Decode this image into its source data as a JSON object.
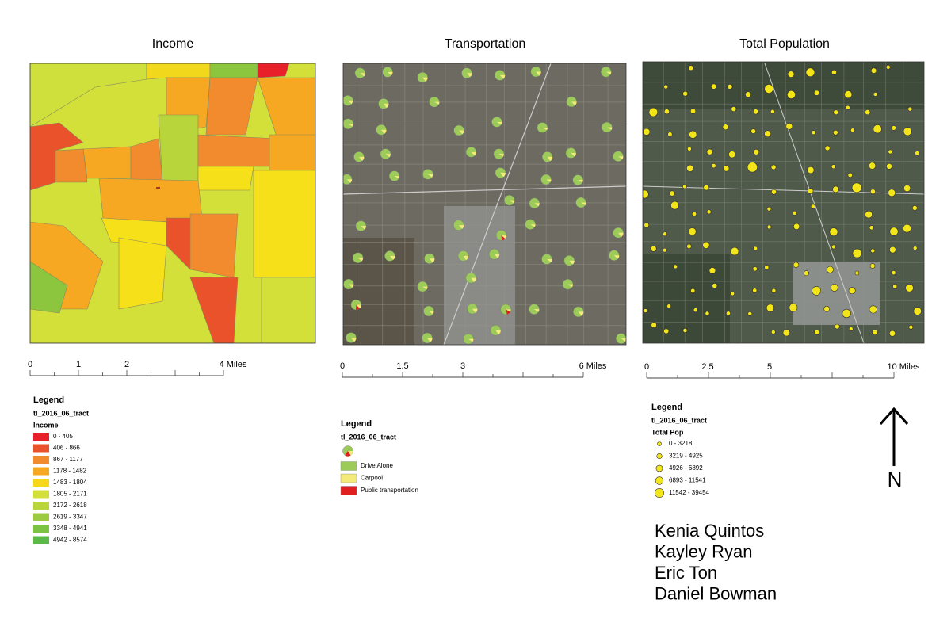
{
  "maps": [
    {
      "title": "Income",
      "scale": [
        "0",
        "1",
        "2",
        "4 Miles"
      ],
      "legend": {
        "title": "Legend",
        "layer": "tl_2016_06_tract",
        "field": "Income",
        "classes": [
          "0 - 405",
          "406 - 866",
          "867 - 1177",
          "1178 - 1482",
          "1483 - 1804",
          "1805 - 2171",
          "2172 - 2618",
          "2619 - 3347",
          "3348 - 4941",
          "4942 - 8574"
        ]
      }
    },
    {
      "title": "Transportation",
      "scale": [
        "0",
        "1.5",
        "3",
        "6 Miles"
      ],
      "legend": {
        "title": "Legend",
        "layer": "tl_2016_06_tract",
        "classes": [
          "Drive Alone",
          "Carpool",
          "Public transportation"
        ]
      }
    },
    {
      "title": "Total Population",
      "scale": [
        "0",
        "2.5",
        "5",
        "10 Miles"
      ],
      "legend": {
        "title": "Legend",
        "layer": "tl_2016_06_tract",
        "field": "Total Pop",
        "classes": [
          "0 - 3218",
          "3219 - 4925",
          "4926 - 6892",
          "6893 - 11541",
          "11542 - 39454"
        ]
      }
    }
  ],
  "north": "N",
  "authors": [
    "Kenia Quintos",
    "Kayley Ryan",
    "Eric Ton",
    "Daniel Bowman"
  ]
}
